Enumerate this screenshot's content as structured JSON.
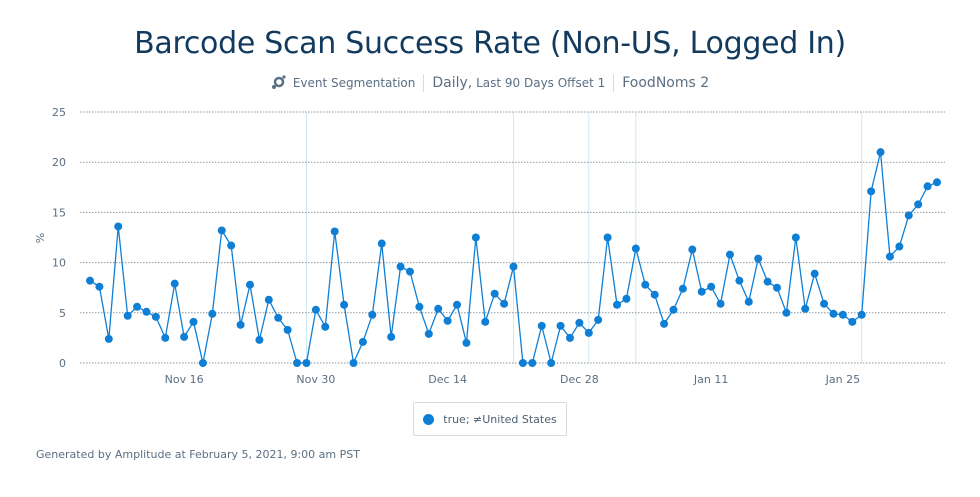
{
  "title": "Barcode Scan Success Rate (Non-US, Logged In)",
  "subtitle": {
    "icon": "event-segmentation-icon",
    "chart_kind": "Event Segmentation",
    "interval": "Daily,",
    "range": "Last 90 Days Offset 1",
    "project": "FoodNoms 2"
  },
  "footer": "Generated by Amplitude at February 5, 2021, 9:00 am PST",
  "colors": {
    "series": "#0f7fd6",
    "title": "#123a5e",
    "annotation": "#cdeaf2"
  },
  "chart_data": {
    "type": "line",
    "title": "Barcode Scan Success Rate (Non-US, Logged In)",
    "ylabel": "%",
    "ylim": [
      0,
      25
    ],
    "yticks": [
      "0",
      "5",
      "10",
      "15",
      "20",
      "25"
    ],
    "xticks": [
      "Nov 16",
      "Nov 30",
      "Dec 14",
      "Dec 28",
      "Jan 11",
      "Jan 25"
    ],
    "grid": true,
    "legend_placement": "bottom",
    "annotations": [
      "Nov 29",
      "Dec 21",
      "Dec 29",
      "Jan 3",
      "Jan 27"
    ],
    "x": [
      "Nov 6",
      "Nov 7",
      "Nov 8",
      "Nov 9",
      "Nov 10",
      "Nov 11",
      "Nov 12",
      "Nov 13",
      "Nov 14",
      "Nov 15",
      "Nov 16",
      "Nov 17",
      "Nov 18",
      "Nov 19",
      "Nov 20",
      "Nov 21",
      "Nov 22",
      "Nov 23",
      "Nov 24",
      "Nov 25",
      "Nov 26",
      "Nov 27",
      "Nov 28",
      "Nov 29",
      "Nov 30",
      "Dec 1",
      "Dec 2",
      "Dec 3",
      "Dec 4",
      "Dec 5",
      "Dec 6",
      "Dec 7",
      "Dec 8",
      "Dec 9",
      "Dec 10",
      "Dec 11",
      "Dec 12",
      "Dec 13",
      "Dec 14",
      "Dec 15",
      "Dec 16",
      "Dec 17",
      "Dec 18",
      "Dec 19",
      "Dec 20",
      "Dec 21",
      "Dec 22",
      "Dec 23",
      "Dec 24",
      "Dec 25",
      "Dec 26",
      "Dec 27",
      "Dec 28",
      "Dec 29",
      "Dec 30",
      "Dec 31",
      "Jan 1",
      "Jan 2",
      "Jan 3",
      "Jan 4",
      "Jan 5",
      "Jan 6",
      "Jan 7",
      "Jan 8",
      "Jan 9",
      "Jan 10",
      "Jan 11",
      "Jan 12",
      "Jan 13",
      "Jan 14",
      "Jan 15",
      "Jan 16",
      "Jan 17",
      "Jan 18",
      "Jan 19",
      "Jan 20",
      "Jan 21",
      "Jan 22",
      "Jan 23",
      "Jan 24",
      "Jan 25",
      "Jan 26",
      "Jan 27",
      "Jan 28",
      "Jan 29",
      "Jan 30",
      "Jan 31",
      "Feb 1",
      "Feb 2",
      "Feb 3",
      "Feb 4"
    ],
    "series": [
      {
        "name": "true; ≠United States",
        "values": [
          8.2,
          7.6,
          2.4,
          13.6,
          4.7,
          5.6,
          5.1,
          4.6,
          2.5,
          7.9,
          2.6,
          4.1,
          0,
          4.9,
          13.2,
          11.7,
          3.8,
          7.8,
          2.3,
          6.3,
          4.5,
          3.3,
          0,
          0,
          5.3,
          3.6,
          13.1,
          5.8,
          0,
          2.1,
          4.8,
          11.9,
          2.6,
          9.6,
          9.1,
          5.6,
          2.9,
          5.4,
          4.2,
          5.8,
          2.0,
          12.5,
          4.1,
          6.9,
          5.9,
          9.6,
          0,
          0,
          3.7,
          0,
          3.7,
          2.5,
          4.0,
          3.0,
          4.3,
          12.5,
          5.8,
          6.4,
          11.4,
          7.8,
          6.8,
          3.9,
          5.3,
          7.4,
          11.3,
          7.1,
          7.6,
          5.9,
          10.8,
          8.2,
          6.1,
          10.4,
          8.1,
          7.5,
          5.0,
          12.5,
          5.4,
          8.9,
          5.9,
          4.9,
          4.8,
          4.1,
          4.8,
          17.1,
          21.0,
          10.6,
          11.6,
          14.7,
          15.8,
          17.6,
          18.0
        ]
      }
    ]
  }
}
